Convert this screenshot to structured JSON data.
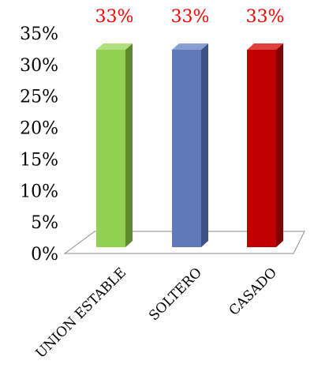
{
  "chart_data": {
    "type": "bar",
    "categories": [
      "UNION ESTABLE",
      "SOLTERO",
      "CASADO"
    ],
    "values": [
      33,
      33,
      33
    ],
    "data_labels": [
      "33%",
      "33%",
      "33%"
    ],
    "ylim": [
      0,
      35
    ],
    "yticks": [
      "0%",
      "5%",
      "10%",
      "15%",
      "20%",
      "25%",
      "30%",
      "35%"
    ],
    "xlabel": "",
    "ylabel": "",
    "title": "",
    "grid": false,
    "legend": "none",
    "bar_colors": [
      "#92D050",
      "#6079B8",
      "#C00000"
    ],
    "bar_side_colors": [
      "#5E8A2E",
      "#3D5184",
      "#7E0000"
    ],
    "bar_top_colors": [
      "#B3E07F",
      "#8A9FD1",
      "#E04040"
    ],
    "data_label_color": "#FF0000"
  }
}
